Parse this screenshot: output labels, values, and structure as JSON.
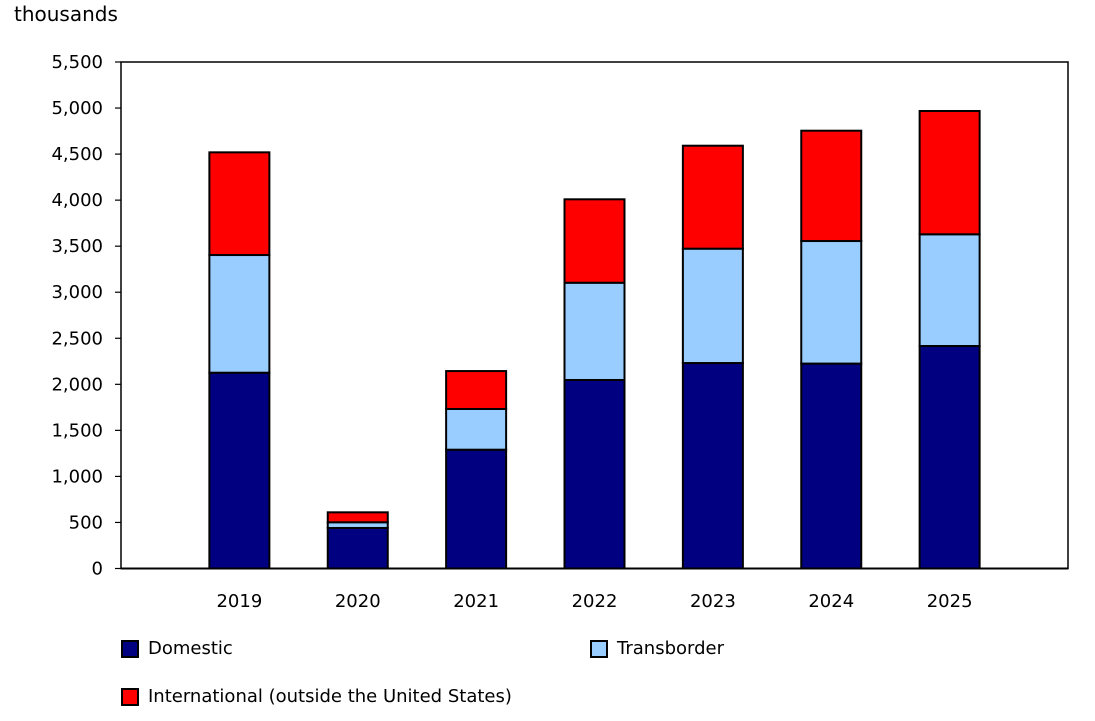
{
  "chart_data": {
    "type": "bar",
    "stacked": true,
    "title": "",
    "xlabel": "",
    "ylabel": "thousands",
    "ylim": [
      0,
      5500
    ],
    "yticks": [
      0,
      500,
      1000,
      1500,
      2000,
      2500,
      3000,
      3500,
      4000,
      4500,
      5000,
      5500
    ],
    "ytick_labels": [
      "0",
      "500",
      "1,000",
      "1,500",
      "2,000",
      "2,500",
      "3,000",
      "3,500",
      "4,000",
      "4,500",
      "5,000",
      "5,500"
    ],
    "grid": false,
    "legend_position": "bottom",
    "categories": [
      "2019",
      "2020",
      "2021",
      "2022",
      "2023",
      "2024",
      "2025"
    ],
    "series": [
      {
        "name": "Domestic",
        "color": "#000080",
        "values": [
          2126,
          440,
          1290,
          2047,
          2231,
          2225,
          2416
        ]
      },
      {
        "name": "Transborder",
        "color": "#99ccff",
        "values": [
          1278,
          62,
          442,
          1056,
          1242,
          1331,
          1213
        ]
      },
      {
        "name": "International (outside the United States)",
        "color": "#ff0000",
        "values": [
          1115,
          108,
          412,
          906,
          1118,
          1198,
          1339
        ]
      }
    ]
  }
}
